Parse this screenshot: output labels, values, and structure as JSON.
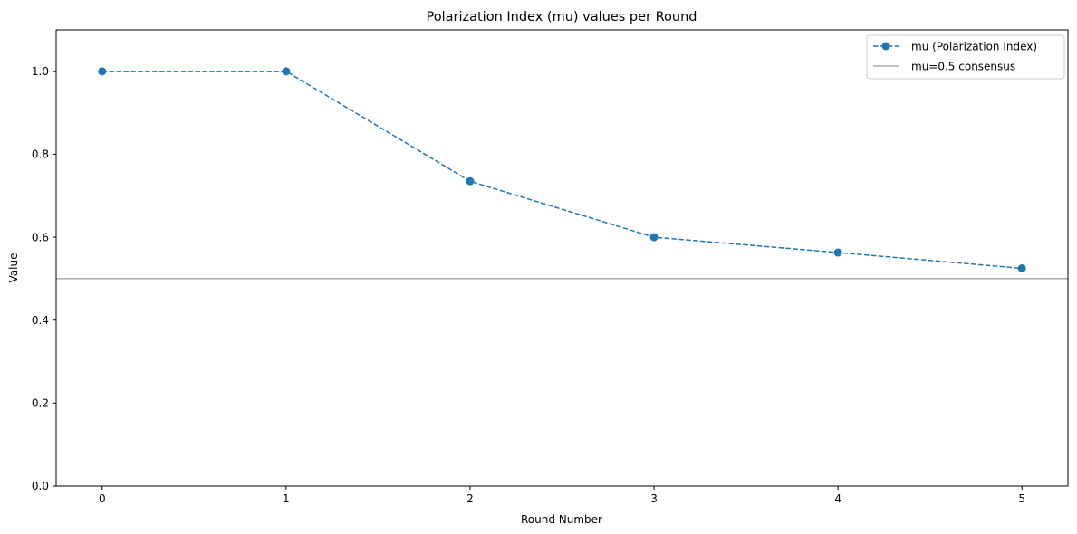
{
  "chart_data": {
    "type": "line",
    "title": "Polarization Index (mu) values per Round",
    "xlabel": "Round Number",
    "ylabel": "Value",
    "x": [
      0,
      1,
      2,
      3,
      4,
      5
    ],
    "xticks": [
      "0",
      "1",
      "2",
      "3",
      "4",
      "5"
    ],
    "yticks": [
      "0.0",
      "0.2",
      "0.4",
      "0.6",
      "0.8",
      "1.0"
    ],
    "xlim": [
      -0.25,
      5.25
    ],
    "ylim": [
      0,
      1.1
    ],
    "grid": false,
    "legend_position": "upper right",
    "series": [
      {
        "name": "mu (Polarization Index)",
        "values": [
          1.0,
          1.0,
          0.735,
          0.6,
          0.563,
          0.525
        ],
        "color": "#1f77b4",
        "linestyle": "dashed",
        "marker": "circle"
      }
    ],
    "reference_lines": [
      {
        "name": "mu=0.5 consensus",
        "y": 0.5,
        "color": "#808080"
      }
    ]
  }
}
